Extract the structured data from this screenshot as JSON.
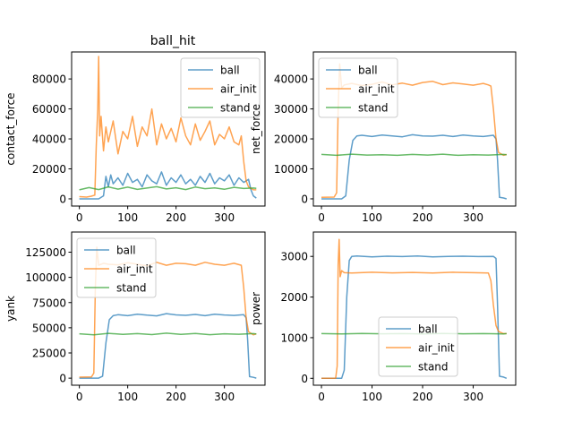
{
  "figure_title": "ball_hit",
  "colors": {
    "ball": "#1f77b4",
    "air_init": "#ff7f0e",
    "stand": "#2ca02c"
  },
  "chart_data": [
    {
      "type": "line",
      "title": "",
      "xlabel": "",
      "ylabel": "contact_force",
      "xlim": [
        -16,
        384
      ],
      "ylim": [
        -4800,
        98000
      ],
      "xticks": [
        0,
        100,
        200,
        300
      ],
      "yticks": [
        0,
        20000,
        40000,
        60000,
        80000
      ],
      "ytick_labels": [
        "0",
        "20000",
        "40000",
        "60000",
        "80000"
      ],
      "legend": "upper right",
      "grid": false,
      "series": [
        {
          "name": "ball",
          "color": "#1f77b4",
          "x": [
            0,
            20,
            40,
            50,
            55,
            60,
            65,
            70,
            80,
            90,
            100,
            110,
            120,
            130,
            140,
            150,
            160,
            170,
            180,
            190,
            200,
            210,
            220,
            230,
            240,
            250,
            260,
            270,
            280,
            290,
            300,
            310,
            320,
            330,
            340,
            350,
            355,
            360,
            366
          ],
          "y": [
            0,
            0,
            0,
            2000,
            15000,
            8000,
            16000,
            10000,
            14000,
            9000,
            17000,
            11000,
            13000,
            8000,
            16000,
            12000,
            10000,
            18000,
            9000,
            14000,
            11000,
            16000,
            10000,
            13000,
            9000,
            15000,
            11000,
            17000,
            10000,
            14000,
            12000,
            16000,
            9000,
            14000,
            11000,
            13000,
            6000,
            2000,
            500
          ]
        },
        {
          "name": "air_init",
          "color": "#ff7f0e",
          "x": [
            0,
            15,
            25,
            32,
            35,
            38,
            40,
            42,
            45,
            50,
            55,
            60,
            70,
            80,
            90,
            100,
            110,
            120,
            130,
            140,
            150,
            160,
            170,
            180,
            190,
            200,
            210,
            220,
            230,
            240,
            250,
            260,
            270,
            280,
            290,
            300,
            310,
            320,
            330,
            335,
            340,
            345,
            350,
            360,
            366
          ],
          "y": [
            1500,
            1200,
            1800,
            2500,
            35000,
            60000,
            95000,
            42000,
            55000,
            32000,
            48000,
            38000,
            52000,
            30000,
            45000,
            40000,
            55000,
            35000,
            48000,
            42000,
            60000,
            36000,
            50000,
            40000,
            47000,
            38000,
            54000,
            42000,
            36000,
            50000,
            39000,
            45000,
            52000,
            36000,
            43000,
            40000,
            48000,
            38000,
            36000,
            42000,
            25000,
            12000,
            8000,
            6000,
            6000
          ]
        },
        {
          "name": "stand",
          "color": "#2ca02c",
          "x": [
            0,
            20,
            40,
            60,
            80,
            100,
            120,
            140,
            160,
            180,
            200,
            220,
            240,
            260,
            280,
            300,
            320,
            340,
            360,
            366
          ],
          "y": [
            6000,
            7500,
            6200,
            8000,
            6500,
            7800,
            6300,
            7200,
            8100,
            6600,
            7400,
            6200,
            7900,
            6800,
            7300,
            6400,
            7700,
            6900,
            7200,
            7000
          ]
        }
      ]
    },
    {
      "type": "line",
      "title": "",
      "xlabel": "",
      "ylabel": "net_force",
      "xlim": [
        -16,
        384
      ],
      "ylim": [
        -2400,
        49000
      ],
      "xticks": [
        0,
        100,
        200,
        300
      ],
      "yticks": [
        0,
        10000,
        20000,
        30000,
        40000
      ],
      "ytick_labels": [
        "0",
        "10000",
        "20000",
        "30000",
        "40000"
      ],
      "legend": "upper left",
      "grid": false,
      "series": [
        {
          "name": "ball",
          "color": "#1f77b4",
          "x": [
            0,
            40,
            48,
            55,
            62,
            70,
            80,
            100,
            120,
            140,
            160,
            180,
            200,
            220,
            240,
            260,
            280,
            300,
            320,
            340,
            345,
            348,
            352,
            360,
            366
          ],
          "y": [
            0,
            0,
            1000,
            13000,
            19500,
            21000,
            21200,
            20800,
            21300,
            21000,
            20700,
            21400,
            21000,
            20900,
            21200,
            20800,
            21300,
            21000,
            20800,
            21200,
            20000,
            13000,
            500,
            300,
            0
          ]
        },
        {
          "name": "air_init",
          "color": "#ff7f0e",
          "x": [
            0,
            25,
            30,
            33,
            36,
            40,
            45,
            60,
            80,
            100,
            120,
            140,
            160,
            180,
            200,
            220,
            240,
            260,
            280,
            300,
            320,
            330,
            335,
            340,
            345,
            350,
            360,
            366
          ],
          "y": [
            500,
            600,
            2000,
            30000,
            45000,
            37000,
            38000,
            38500,
            37800,
            38200,
            39000,
            38000,
            38600,
            37900,
            38800,
            39200,
            38100,
            38700,
            38300,
            37900,
            38500,
            38000,
            37600,
            30000,
            20000,
            15500,
            14500,
            14800
          ]
        },
        {
          "name": "stand",
          "color": "#2ca02c",
          "x": [
            0,
            30,
            60,
            90,
            120,
            150,
            180,
            210,
            240,
            270,
            300,
            330,
            360,
            366
          ],
          "y": [
            14800,
            14500,
            14900,
            14600,
            14700,
            14500,
            14800,
            14600,
            14900,
            14500,
            14700,
            14600,
            14800,
            14700
          ]
        }
      ]
    },
    {
      "type": "line",
      "title": "",
      "xlabel": "",
      "ylabel": "yank",
      "xlim": [
        -16,
        384
      ],
      "ylim": [
        -7000,
        145000
      ],
      "xticks": [
        0,
        100,
        200,
        300
      ],
      "yticks": [
        0,
        25000,
        50000,
        75000,
        100000,
        125000
      ],
      "ytick_labels": [
        "0",
        "25000",
        "50000",
        "75000",
        "100000",
        "125000"
      ],
      "legend": "upper left",
      "grid": false,
      "series": [
        {
          "name": "ball",
          "color": "#1f77b4",
          "x": [
            0,
            40,
            48,
            55,
            62,
            70,
            80,
            100,
            120,
            140,
            160,
            180,
            200,
            220,
            240,
            260,
            280,
            300,
            320,
            340,
            345,
            348,
            352,
            360,
            366
          ],
          "y": [
            0,
            0,
            2000,
            35000,
            58000,
            62000,
            63000,
            62000,
            63500,
            62500,
            61800,
            64000,
            62800,
            62300,
            63200,
            62000,
            63500,
            62700,
            62200,
            63000,
            60000,
            38000,
            1500,
            800,
            0
          ]
        },
        {
          "name": "air_init",
          "color": "#ff7f0e",
          "x": [
            0,
            25,
            30,
            33,
            36,
            40,
            50,
            60,
            80,
            100,
            120,
            140,
            160,
            180,
            200,
            220,
            240,
            260,
            280,
            300,
            320,
            335,
            340,
            345,
            350,
            360,
            366
          ],
          "y": [
            1000,
            1200,
            5000,
            90000,
            130000,
            112000,
            114000,
            113000,
            112500,
            114500,
            113000,
            111500,
            115000,
            112000,
            114000,
            113500,
            112000,
            115000,
            113000,
            112000,
            114000,
            112000,
            90000,
            60000,
            46000,
            43000,
            44000
          ]
        },
        {
          "name": "stand",
          "color": "#2ca02c",
          "x": [
            0,
            30,
            60,
            90,
            120,
            150,
            180,
            210,
            240,
            270,
            300,
            330,
            360,
            366
          ],
          "y": [
            44000,
            43000,
            44500,
            43500,
            44200,
            43200,
            44600,
            43400,
            44300,
            43100,
            44000,
            43600,
            44200,
            43800
          ]
        }
      ]
    },
    {
      "type": "line",
      "title": "",
      "xlabel": "",
      "ylabel": "power",
      "xlim": [
        -16,
        384
      ],
      "ylim": [
        -170,
        3600
      ],
      "xticks": [
        0,
        100,
        200,
        300
      ],
      "yticks": [
        0,
        1000,
        2000,
        3000
      ],
      "ytick_labels": [
        "0",
        "1000",
        "2000",
        "3000"
      ],
      "legend": "lower center",
      "grid": false,
      "series": [
        {
          "name": "ball",
          "color": "#1f77b4",
          "x": [
            0,
            40,
            45,
            50,
            55,
            60,
            70,
            100,
            130,
            160,
            190,
            220,
            250,
            280,
            310,
            340,
            345,
            348,
            352,
            360,
            366
          ],
          "y": [
            0,
            0,
            200,
            2000,
            2900,
            3000,
            3010,
            2990,
            3005,
            2995,
            3010,
            2990,
            3000,
            3005,
            2995,
            3000,
            2950,
            1800,
            50,
            30,
            0
          ]
        },
        {
          "name": "air_init",
          "color": "#ff7f0e",
          "x": [
            0,
            28,
            31,
            33,
            35,
            37,
            40,
            45,
            60,
            100,
            140,
            180,
            220,
            260,
            300,
            330,
            335,
            340,
            345,
            350,
            360,
            366
          ],
          "y": [
            0,
            0,
            300,
            2800,
            3420,
            2500,
            2650,
            2600,
            2590,
            2610,
            2595,
            2605,
            2590,
            2610,
            2600,
            2590,
            2400,
            1800,
            1300,
            1150,
            1100,
            1100
          ]
        },
        {
          "name": "stand",
          "color": "#2ca02c",
          "x": [
            0,
            40,
            80,
            120,
            160,
            200,
            240,
            280,
            320,
            360,
            366
          ],
          "y": [
            1100,
            1090,
            1105,
            1095,
            1100,
            1090,
            1105,
            1095,
            1100,
            1090,
            1100
          ]
        }
      ]
    }
  ]
}
